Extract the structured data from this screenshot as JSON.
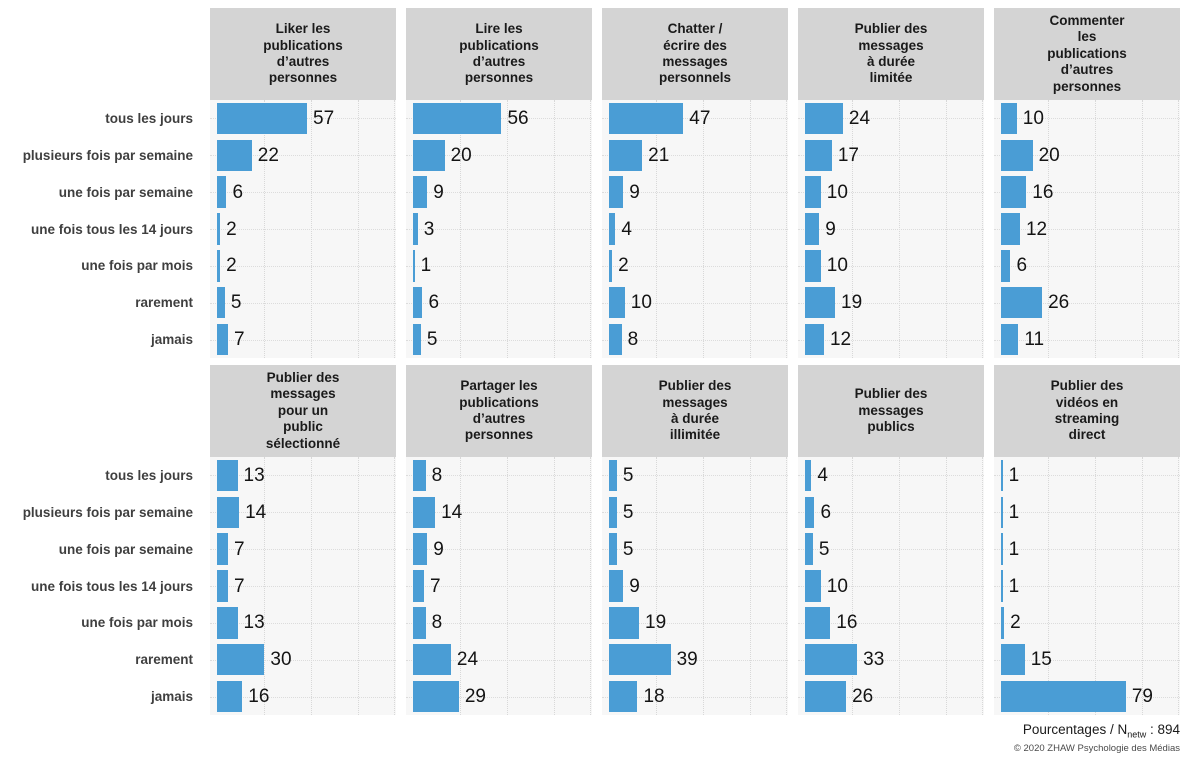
{
  "chart_data": {
    "type": "bar",
    "orientation": "horizontal",
    "unit": "percent",
    "grid": "dotted",
    "bar_color": "#4a9dd5",
    "header_bg": "#d4d4d4",
    "panel_bg": "#f7f7f7",
    "xlim": [
      0,
      115
    ],
    "categories": [
      "tous les jours",
      "plusieurs fois par semaine",
      "une fois par semaine",
      "une fois tous les 14 jours",
      "une fois par mois",
      "rarement",
      "jamais"
    ],
    "panels": [
      {
        "title": "Liker les\npublications\nd’autres\npersonnes",
        "values": [
          57,
          22,
          6,
          2,
          2,
          5,
          7
        ]
      },
      {
        "title": "Lire les\npublications\nd’autres\npersonnes",
        "values": [
          56,
          20,
          9,
          3,
          1,
          6,
          5
        ]
      },
      {
        "title": "Chatter /\nécrire des\nmessages\npersonnels",
        "values": [
          47,
          21,
          9,
          4,
          2,
          10,
          8
        ]
      },
      {
        "title": "Publier des\nmessages\nà durée\nlimitée",
        "values": [
          24,
          17,
          10,
          9,
          10,
          19,
          12
        ]
      },
      {
        "title": "Commenter\nles\npublications\nd’autres\npersonnes",
        "values": [
          10,
          20,
          16,
          12,
          6,
          26,
          11
        ]
      },
      {
        "title": "Publier des\nmessages\npour un\npublic\nsélectionné",
        "values": [
          13,
          14,
          7,
          7,
          13,
          30,
          16
        ]
      },
      {
        "title": "Partager les\npublications\nd’autres\npersonnes",
        "values": [
          8,
          14,
          9,
          7,
          8,
          24,
          29
        ]
      },
      {
        "title": "Publier des\nmessages\nà durée\nillimitée",
        "values": [
          5,
          5,
          5,
          9,
          19,
          39,
          18
        ]
      },
      {
        "title": "Publier des\nmessages\npublics",
        "values": [
          4,
          6,
          5,
          10,
          16,
          33,
          26
        ]
      },
      {
        "title": "Publier des\nvidéos en\nstreaming\ndirect",
        "values": [
          1,
          1,
          1,
          1,
          2,
          15,
          79
        ]
      }
    ]
  },
  "footer": {
    "metric_prefix": "Pourcentages / N",
    "metric_sub": "netw",
    "metric_suffix": " : 894",
    "copyright": "© 2020 ZHAW Psychologie des Médias"
  }
}
